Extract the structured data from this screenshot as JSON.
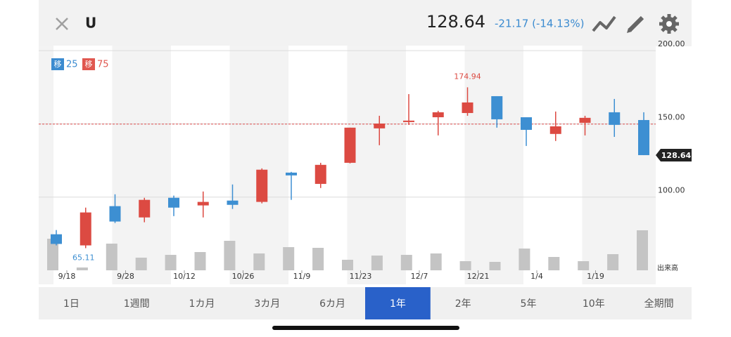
{
  "header": {
    "symbol": "U",
    "price": "128.64",
    "change": "-21.17 (-14.13%)"
  },
  "chart_data": {
    "type": "candlestick",
    "ma_legend": [
      {
        "mark": "移",
        "period": "25",
        "color": "#3b8bd0"
      },
      {
        "mark": "移",
        "period": "75",
        "color": "#e0574f"
      }
    ],
    "open": [
      74.6,
      67,
      93.8,
      86.1,
      99.5,
      94.3,
      97.6,
      96.7,
      116.7,
      109,
      123.4,
      146.9,
      151.2,
      154.5,
      157.4,
      168.9,
      154.5,
      143.1,
      150.7,
      157.9,
      152.6
    ],
    "high": [
      77.5,
      92.8,
      101.9,
      99.5,
      101,
      103.8,
      108.6,
      119.6,
      117.2,
      123.4,
      147.4,
      155.5,
      170.3,
      158.9,
      174.94,
      168.9,
      154.5,
      158.4,
      155.5,
      167,
      157.9
    ],
    "low": [
      67,
      65.11,
      82.3,
      82.8,
      87,
      86.1,
      91.9,
      95.7,
      98.1,
      106.2,
      123,
      135.4,
      149.3,
      142.1,
      155.5,
      147.4,
      134.9,
      138.3,
      142.1,
      141.1,
      128.64
    ],
    "close": [
      68,
      89.5,
      83.3,
      98.1,
      92.8,
      96.7,
      94.7,
      118.7,
      114.8,
      122,
      147.4,
      150.2,
      152.2,
      157.9,
      164.6,
      153.1,
      145.9,
      148.3,
      154.1,
      149.3,
      128.64
    ],
    "volume": [
      45,
      4,
      38,
      18,
      22,
      26,
      42,
      24,
      33,
      32,
      15,
      21,
      22,
      24,
      13,
      12,
      31,
      19,
      13,
      23,
      57
    ],
    "up_color": "#dc4a42",
    "down_color": "#3d8fd2",
    "volume_color": "#c4c4c4",
    "volume_label": "出来高",
    "xtick_labels": [
      "9/18",
      "9/28",
      "10/12",
      "10/26",
      "11/9",
      "11/23",
      "12/7",
      "12/21",
      "1/4",
      "1/19"
    ],
    "ylim": [
      50,
      203.4
    ],
    "yticks": [
      {
        "value": 100,
        "label": "100.00"
      },
      {
        "value": 150,
        "label": "150.00"
      },
      {
        "value": 200,
        "label": "200.00"
      }
    ],
    "reference_line": 149.81,
    "last_price": 128.64,
    "high_label_index": 14,
    "low_label_index": 1,
    "grid": true
  },
  "tabs": {
    "items": [
      "1日",
      "1週間",
      "1カ月",
      "3カ月",
      "6カ月",
      "1年",
      "2年",
      "5年",
      "10年",
      "全期間"
    ],
    "active": 5
  }
}
